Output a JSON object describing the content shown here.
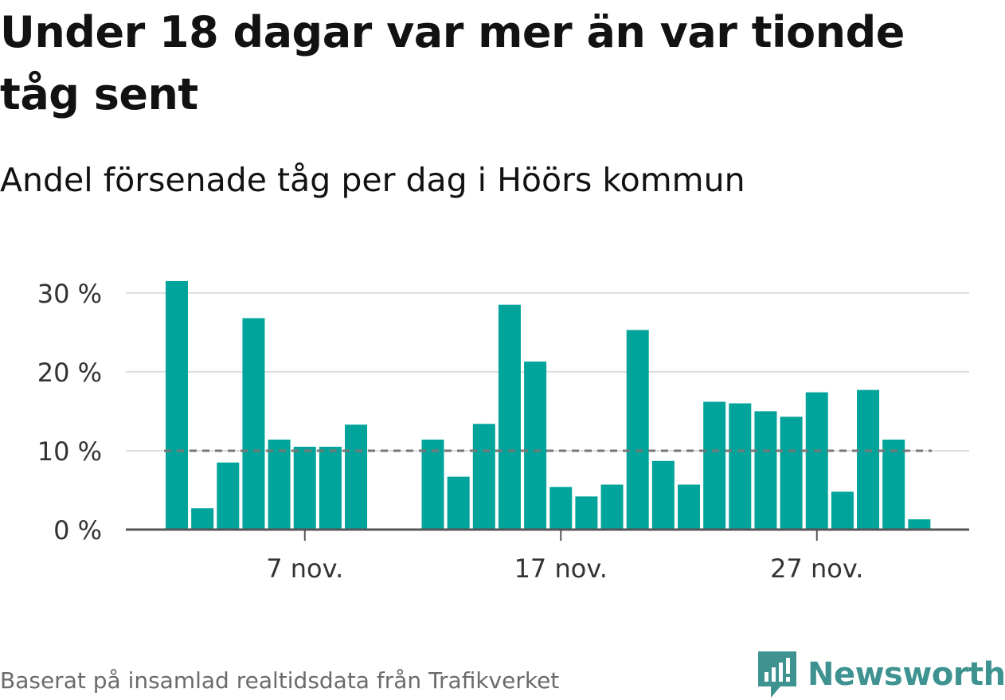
{
  "header": {
    "title": "Under 18 dagar var mer än var tionde tåg sent",
    "subtitle": "Andel försenade tåg per dag i Höörs kommun"
  },
  "footer": {
    "source": "Baserat på insamlad realtidsdata från Trafikverket",
    "brand": "Newsworthy",
    "brand_icon": "newsworthy-logo-icon"
  },
  "colors": {
    "bar": "#00a49a",
    "grid": "#dddddd",
    "axis": "#555555",
    "reference_line": "#777777",
    "brand": "#3e9390"
  },
  "chart_data": {
    "type": "bar",
    "x": [
      "2 nov.",
      "3 nov.",
      "4 nov.",
      "5 nov.",
      "6 nov.",
      "7 nov.",
      "8 nov.",
      "9 nov.",
      "10 nov.",
      "11 nov.",
      "12 nov.",
      "13 nov.",
      "14 nov.",
      "15 nov.",
      "16 nov.",
      "17 nov.",
      "18 nov.",
      "19 nov.",
      "20 nov.",
      "21 nov.",
      "22 nov.",
      "23 nov.",
      "24 nov.",
      "25 nov.",
      "26 nov.",
      "27 nov.",
      "28 nov.",
      "29 nov.",
      "30 nov.",
      "1 dec."
    ],
    "values": [
      31.5,
      2.7,
      8.5,
      26.8,
      11.4,
      10.5,
      10.5,
      13.3,
      null,
      null,
      11.4,
      6.7,
      13.4,
      28.5,
      21.3,
      5.4,
      4.2,
      5.7,
      25.3,
      8.7,
      5.7,
      16.2,
      16.0,
      15.0,
      14.3,
      17.4,
      4.8,
      17.7,
      11.4,
      1.3
    ],
    "x_tick_labels": [
      "7 nov.",
      "17 nov.",
      "27 nov."
    ],
    "y_tick_labels": [
      "0 %",
      "10 %",
      "20 %",
      "30 %"
    ],
    "y_ticks": [
      0,
      10,
      20,
      30
    ],
    "ylim": [
      0,
      32
    ],
    "reference_line": 10,
    "grid": true,
    "legend": "none",
    "xlabel": "",
    "ylabel": ""
  }
}
